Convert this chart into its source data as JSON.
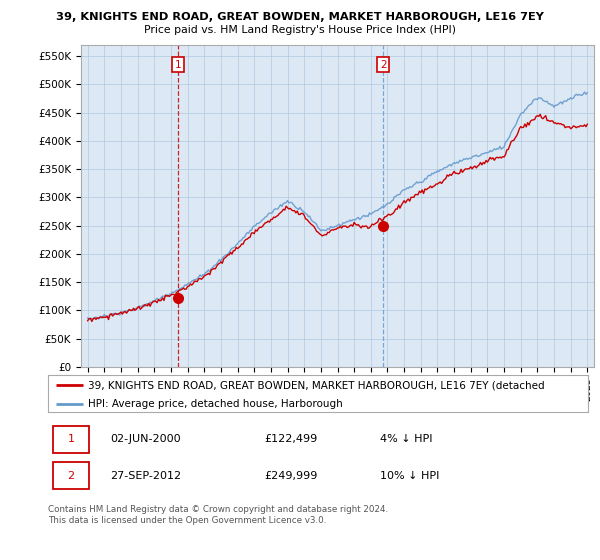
{
  "title1": "39, KNIGHTS END ROAD, GREAT BOWDEN, MARKET HARBOROUGH, LE16 7EY",
  "title2": "Price paid vs. HM Land Registry's House Price Index (HPI)",
  "ylim": [
    0,
    570000
  ],
  "yticks": [
    0,
    50000,
    100000,
    150000,
    200000,
    250000,
    300000,
    350000,
    400000,
    450000,
    500000,
    550000
  ],
  "ytick_labels": [
    "£0",
    "£50K",
    "£100K",
    "£150K",
    "£200K",
    "£250K",
    "£300K",
    "£350K",
    "£400K",
    "£450K",
    "£500K",
    "£550K"
  ],
  "sale1_date": 2000.42,
  "sale1_price": 122499,
  "sale1_label": "1",
  "sale2_date": 2012.74,
  "sale2_price": 249999,
  "sale2_label": "2",
  "legend_line1": "39, KNIGHTS END ROAD, GREAT BOWDEN, MARKET HARBOROUGH, LE16 7EY (detached",
  "legend_line2": "HPI: Average price, detached house, Harborough",
  "line_color_property": "#cc0000",
  "line_color_hpi": "#6699cc",
  "vline1_color": "#cc0000",
  "vline1_style": "--",
  "vline2_color": "#6699cc",
  "vline2_style": "--",
  "chart_bg": "#dce9f5",
  "background_color": "#ffffff",
  "grid_color": "#b0c8e0",
  "footer": "Contains HM Land Registry data © Crown copyright and database right 2024.\nThis data is licensed under the Open Government Licence v3.0."
}
